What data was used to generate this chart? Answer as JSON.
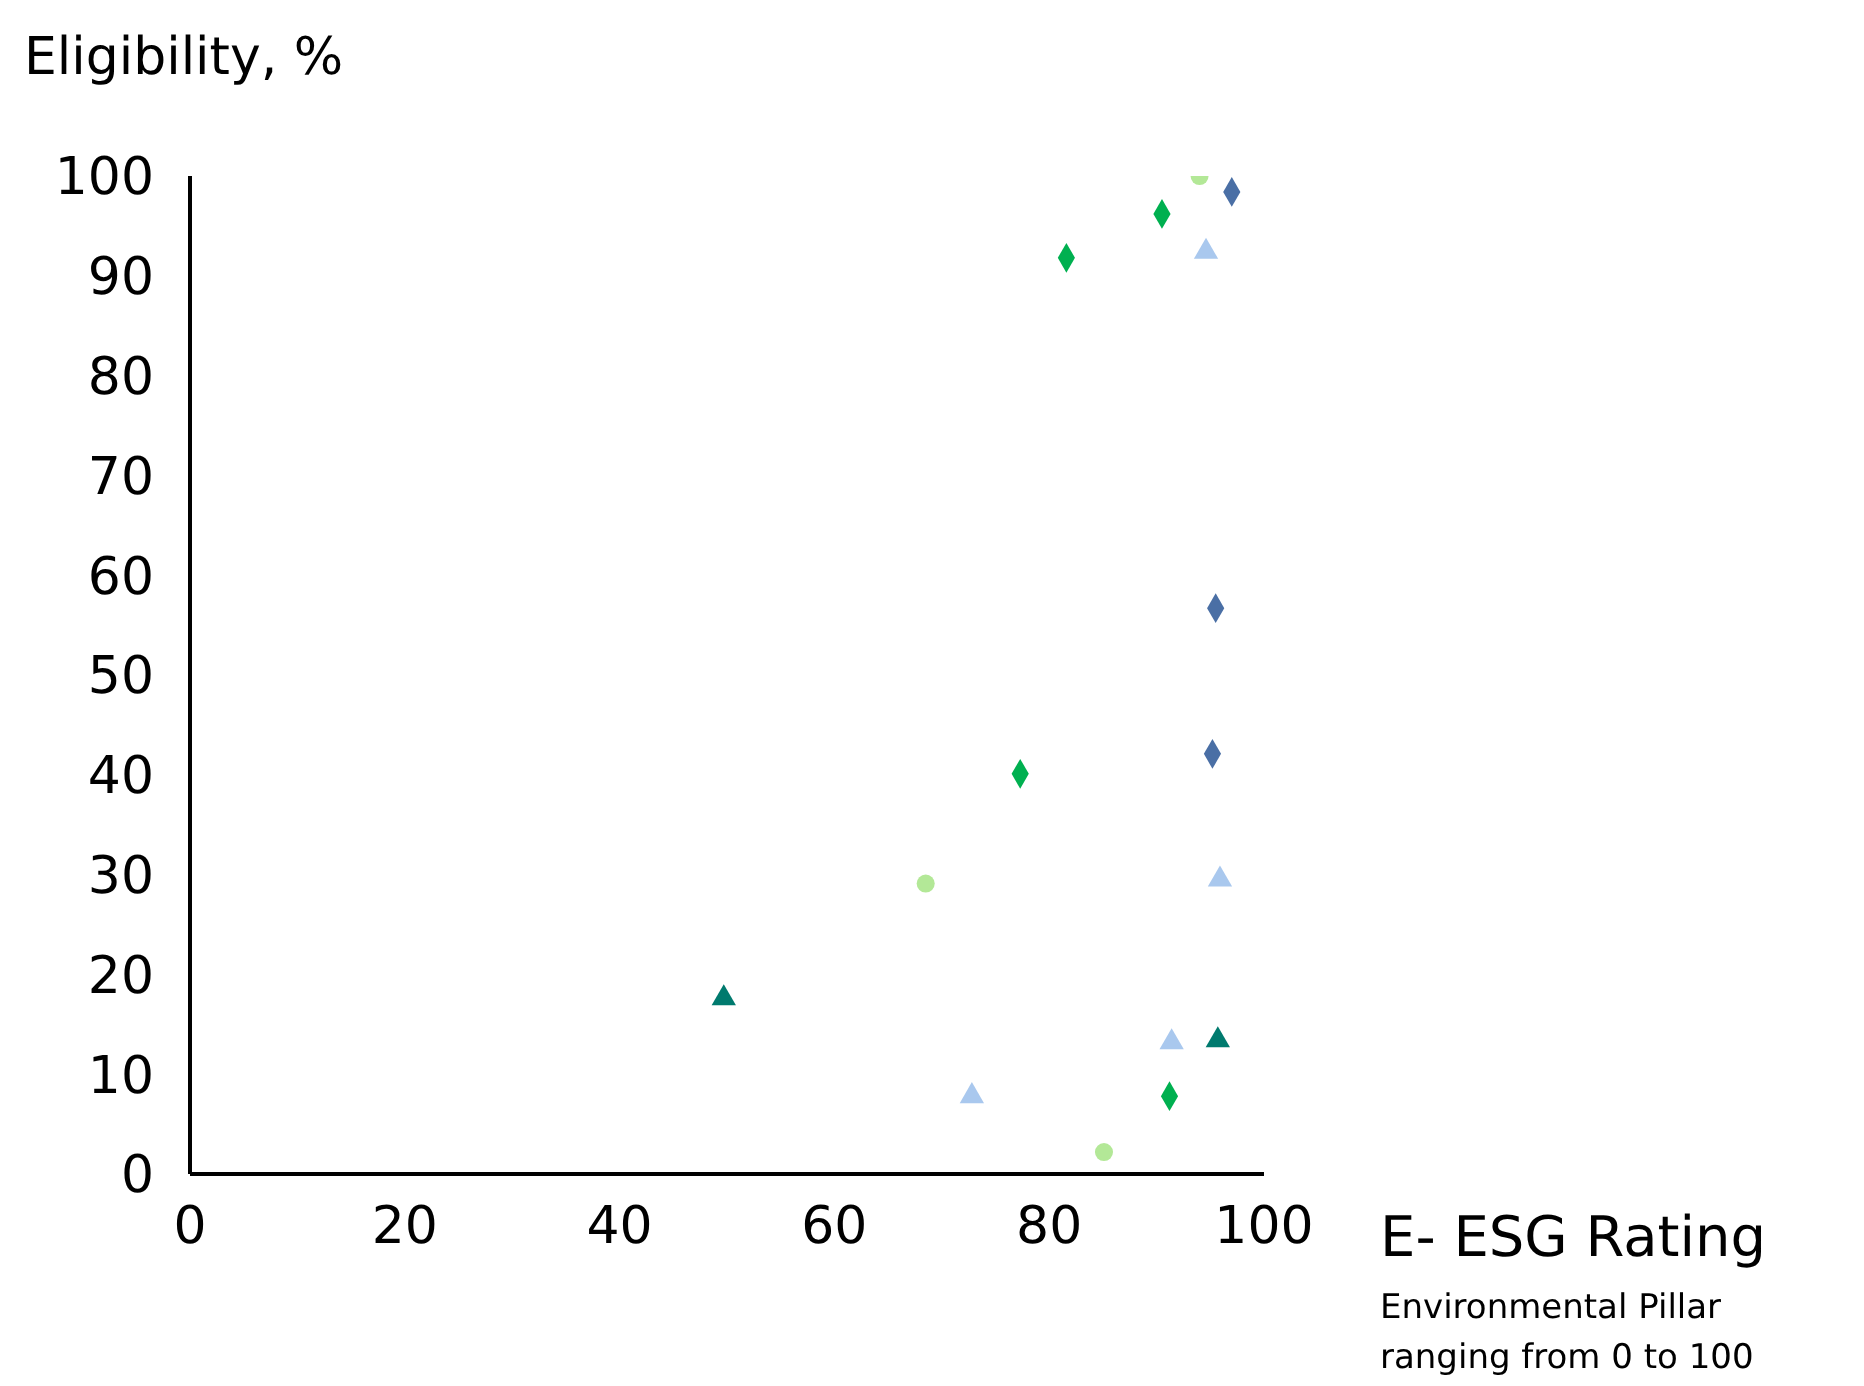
{
  "chart_data": {
    "type": "scatter",
    "ylabel": "Eligibility, %",
    "xlabel": "E- ESG Rating",
    "annotations": [
      "Environmental Pillar ranging from 0 to 100"
    ],
    "xlim": [
      0,
      100
    ],
    "xticks": [
      0,
      20,
      40,
      60,
      80,
      100
    ],
    "ylim": [
      0,
      100
    ],
    "yticks": [
      0,
      10,
      20,
      30,
      40,
      50,
      60,
      70,
      80,
      90,
      100
    ],
    "grid": false,
    "legend": false,
    "series": [
      {
        "color": "#4a6fa5",
        "marker": "diamond",
        "x": [
          97,
          95.5,
          95.2
        ],
        "values": [
          98.4,
          56.7,
          42.1
        ]
      },
      {
        "color": "#00b050",
        "marker": "diamond",
        "x": [
          90.5,
          81.6,
          77.3,
          91.2
        ],
        "values": [
          96.2,
          91.8,
          40.1,
          7.8
        ]
      },
      {
        "color": "#b3e897",
        "marker": "circle",
        "x": [
          94,
          68.5,
          85.1
        ],
        "values": [
          100,
          29.1,
          2.2
        ]
      },
      {
        "color": "#a9c8ee",
        "marker": "triangle",
        "x": [
          94.6,
          95.9,
          91.4,
          72.8
        ],
        "values": [
          92.4,
          29.5,
          13.2,
          7.8
        ]
      },
      {
        "color": "#007a6e",
        "marker": "triangle",
        "x": [
          49.7,
          95.7
        ],
        "values": [
          17.6,
          13.4
        ]
      }
    ]
  }
}
